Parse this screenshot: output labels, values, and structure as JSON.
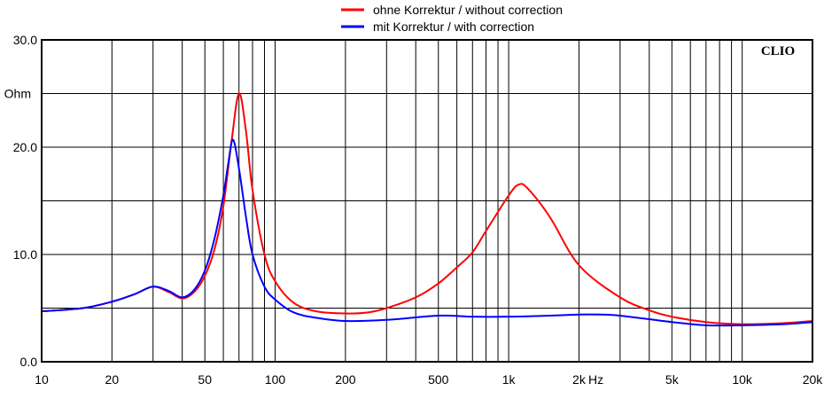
{
  "chart_data": {
    "type": "line",
    "title": "",
    "xlabel": "Hz",
    "ylabel": "Ohm",
    "xscale": "log",
    "xlim": [
      10,
      20000
    ],
    "ylim": [
      0,
      30
    ],
    "grid": true,
    "watermark": "CLIO",
    "x_ticks": [
      {
        "v": 10,
        "l": "10"
      },
      {
        "v": 20,
        "l": "20"
      },
      {
        "v": 50,
        "l": "50"
      },
      {
        "v": 100,
        "l": "100"
      },
      {
        "v": 200,
        "l": "200"
      },
      {
        "v": 500,
        "l": "500"
      },
      {
        "v": 1000,
        "l": "1k"
      },
      {
        "v": 2000,
        "l": "2k"
      },
      {
        "v": 5000,
        "l": "5k"
      },
      {
        "v": 10000,
        "l": "10k"
      },
      {
        "v": 20000,
        "l": "20k"
      }
    ],
    "y_ticks": [
      {
        "v": 0,
        "l": "0.0"
      },
      {
        "v": 10,
        "l": "10.0"
      },
      {
        "v": 20,
        "l": "20.0"
      },
      {
        "v": 30,
        "l": "30.0"
      }
    ],
    "series": [
      {
        "name": "ohne Korrektur / without correction",
        "color": "#ff0000",
        "x": [
          10,
          15,
          20,
          25,
          30,
          35,
          40,
          45,
          50,
          55,
          60,
          65,
          70,
          75,
          80,
          90,
          100,
          120,
          150,
          200,
          250,
          300,
          400,
          500,
          600,
          700,
          800,
          1000,
          1100,
          1200,
          1500,
          2000,
          3000,
          4000,
          5000,
          7000,
          10000,
          15000,
          20000
        ],
        "y": [
          4.7,
          5.0,
          5.6,
          6.3,
          7.0,
          6.5,
          5.9,
          6.5,
          8.0,
          10.5,
          14.5,
          20.5,
          25.0,
          21.5,
          16.0,
          10.0,
          7.5,
          5.5,
          4.7,
          4.5,
          4.6,
          5.0,
          6.0,
          7.3,
          8.8,
          10.2,
          12.2,
          15.5,
          16.5,
          16.2,
          13.5,
          9.0,
          6.0,
          4.8,
          4.2,
          3.7,
          3.5,
          3.6,
          3.8
        ]
      },
      {
        "name": "mit Korrektur /  with correction",
        "color": "#0000ff",
        "x": [
          10,
          15,
          20,
          25,
          30,
          35,
          40,
          45,
          50,
          55,
          60,
          63,
          66,
          70,
          75,
          80,
          90,
          100,
          120,
          150,
          200,
          300,
          500,
          700,
          1000,
          1500,
          2000,
          2500,
          3000,
          5000,
          7000,
          10000,
          15000,
          20000
        ],
        "y": [
          4.7,
          5.0,
          5.6,
          6.3,
          7.0,
          6.6,
          6.0,
          6.7,
          8.5,
          11.5,
          15.5,
          18.5,
          20.7,
          18.0,
          13.5,
          10.0,
          7.0,
          5.8,
          4.6,
          4.1,
          3.8,
          3.9,
          4.3,
          4.2,
          4.2,
          4.3,
          4.4,
          4.4,
          4.3,
          3.7,
          3.4,
          3.4,
          3.5,
          3.7
        ]
      }
    ]
  }
}
